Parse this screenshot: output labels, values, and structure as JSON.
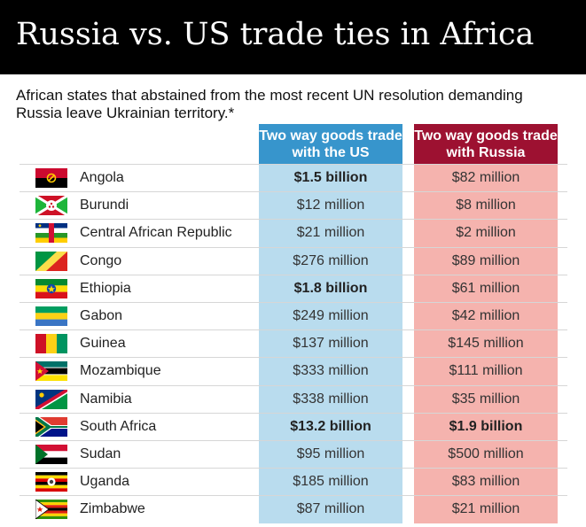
{
  "chart_data": {
    "type": "table",
    "title": "Russia vs. US trade ties in Africa",
    "subtitle": "African states that abstained from the most recent UN resolution demanding Russia leave Ukrainian territory.*",
    "columns": [
      "Two way goods trade with the US",
      "Two way goods trade with Russia"
    ],
    "rows": [
      {
        "country": "Angola",
        "flag": "angola-flag-icon",
        "us": "$1.5 billion",
        "ru": "$82 million",
        "us_bold": true,
        "ru_bold": false
      },
      {
        "country": "Burundi",
        "flag": "burundi-flag-icon",
        "us": "$12 million",
        "ru": "$8 million",
        "us_bold": false,
        "ru_bold": false
      },
      {
        "country": "Central African Republic",
        "flag": "car-flag-icon",
        "us": "$21 million",
        "ru": "$2 million",
        "us_bold": false,
        "ru_bold": false
      },
      {
        "country": "Congo",
        "flag": "congo-flag-icon",
        "us": "$276 million",
        "ru": "$89 million",
        "us_bold": false,
        "ru_bold": false
      },
      {
        "country": "Ethiopia",
        "flag": "ethiopia-flag-icon",
        "us": "$1.8 billion",
        "ru": "$61 million",
        "us_bold": true,
        "ru_bold": false
      },
      {
        "country": "Gabon",
        "flag": "gabon-flag-icon",
        "us": "$249 million",
        "ru": "$42 million",
        "us_bold": false,
        "ru_bold": false
      },
      {
        "country": "Guinea",
        "flag": "guinea-flag-icon",
        "us": "$137 million",
        "ru": "$145 million",
        "us_bold": false,
        "ru_bold": false
      },
      {
        "country": "Mozambique",
        "flag": "mozambique-flag-icon",
        "us": "$333 million",
        "ru": "$111 million",
        "us_bold": false,
        "ru_bold": false
      },
      {
        "country": "Namibia",
        "flag": "namibia-flag-icon",
        "us": "$338 million",
        "ru": "$35 million",
        "us_bold": false,
        "ru_bold": false
      },
      {
        "country": "South Africa",
        "flag": "south-africa-flag-icon",
        "us": "$13.2 billion",
        "ru": "$1.9 billion",
        "us_bold": true,
        "ru_bold": true
      },
      {
        "country": "Sudan",
        "flag": "sudan-flag-icon",
        "us": "$95 million",
        "ru": "$500 million",
        "us_bold": false,
        "ru_bold": false
      },
      {
        "country": "Uganda",
        "flag": "uganda-flag-icon",
        "us": "$185 million",
        "ru": "$83 million",
        "us_bold": false,
        "ru_bold": false
      },
      {
        "country": "Zimbabwe",
        "flag": "zimbabwe-flag-icon",
        "us": "$87 million",
        "ru": "$21 million",
        "us_bold": false,
        "ru_bold": false
      }
    ]
  },
  "colors": {
    "us_header": "#3795cc",
    "us_column": "#b9dcee",
    "russia_header": "#9d1131",
    "russia_column": "#f5b3ae"
  }
}
